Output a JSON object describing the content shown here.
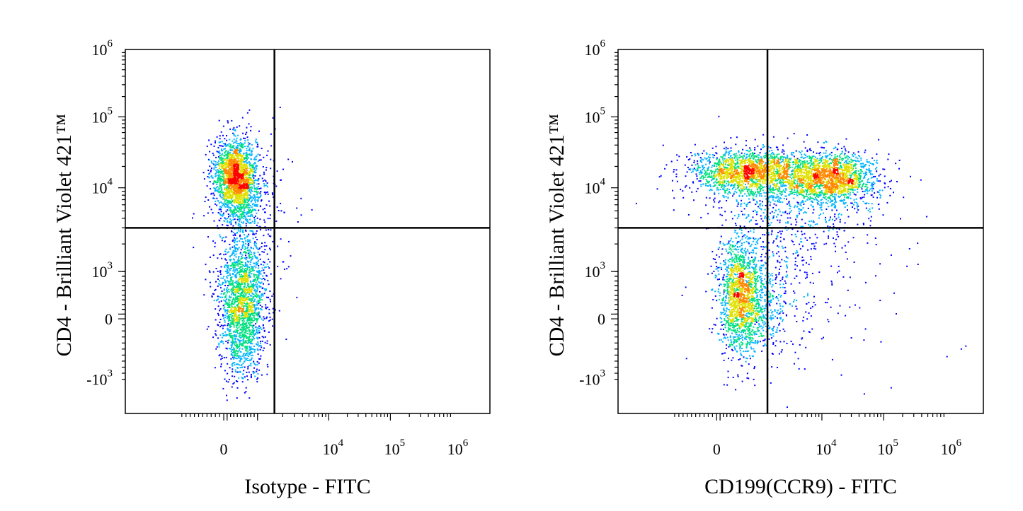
{
  "colors": {
    "frame": "#000000",
    "density_low": "#0000ff",
    "density_mid_low": "#00b4ff",
    "density_mid": "#00e080",
    "density_mid_high": "#e0e000",
    "density_high": "#ff8800",
    "density_peak": "#ff0000"
  },
  "chart_data": [
    {
      "type": "scatter",
      "subtype": "flow-cytometry-density-dot-plot",
      "title": "",
      "xlabel": "Isotype - FITC",
      "ylabel": "CD4 - Brilliant Violet 421™",
      "x_scale": "biexponential",
      "y_scale": "biexponential",
      "xlim": [
        -1000,
        1000000
      ],
      "ylim": [
        -1000,
        1000000
      ],
      "x_ticks": [
        {
          "base": "0",
          "exp": "",
          "value": 0
        },
        {
          "base": "10",
          "exp": "4",
          "value": 10000
        },
        {
          "base": "10",
          "exp": "5",
          "value": 100000
        },
        {
          "base": "10",
          "exp": "6",
          "value": 1000000
        }
      ],
      "y_ticks": [
        {
          "base": "10",
          "exp": "6",
          "value": 1000000
        },
        {
          "base": "10",
          "exp": "5",
          "value": 100000
        },
        {
          "base": "10",
          "exp": "4",
          "value": 10000
        },
        {
          "base": "10",
          "exp": "3",
          "value": 1000
        },
        {
          "base": "0",
          "exp": "",
          "value": 0
        },
        {
          "base": "-10",
          "exp": "3",
          "value": -1000
        }
      ],
      "quadrant_gate": {
        "x": 1500,
        "y": 3000
      },
      "populations": [
        {
          "name": "",
          "x_center": 300,
          "y_center": 14000,
          "relative_density": "high"
        },
        {
          "name": "",
          "x_center": 400,
          "y_center": 300,
          "relative_density": "medium"
        }
      ]
    },
    {
      "type": "scatter",
      "subtype": "flow-cytometry-density-dot-plot",
      "title": "",
      "xlabel": "CD199(CCR9) - FITC",
      "ylabel": "CD4 - Brilliant Violet 421™",
      "x_scale": "biexponential",
      "y_scale": "biexponential",
      "xlim": [
        -1000,
        1000000
      ],
      "ylim": [
        -1000,
        1000000
      ],
      "x_ticks": [
        {
          "base": "0",
          "exp": "",
          "value": 0
        },
        {
          "base": "10",
          "exp": "4",
          "value": 10000
        },
        {
          "base": "10",
          "exp": "5",
          "value": 100000
        },
        {
          "base": "10",
          "exp": "6",
          "value": 1000000
        }
      ],
      "y_ticks": [
        {
          "base": "10",
          "exp": "6",
          "value": 1000000
        },
        {
          "base": "10",
          "exp": "5",
          "value": 100000
        },
        {
          "base": "10",
          "exp": "4",
          "value": 10000
        },
        {
          "base": "10",
          "exp": "3",
          "value": 1000
        },
        {
          "base": "0",
          "exp": "",
          "value": 0
        },
        {
          "base": "-10",
          "exp": "3",
          "value": -1000
        }
      ],
      "quadrant_gate": {
        "x": 1500,
        "y": 3000
      },
      "populations": [
        {
          "name": "",
          "x_center": 300,
          "y_center": 15000,
          "relative_density": "high"
        },
        {
          "name": "",
          "x_center": 12000,
          "y_center": 12000,
          "relative_density": "high"
        },
        {
          "name": "",
          "x_center": 600,
          "y_center": 300,
          "relative_density": "medium"
        }
      ]
    }
  ]
}
